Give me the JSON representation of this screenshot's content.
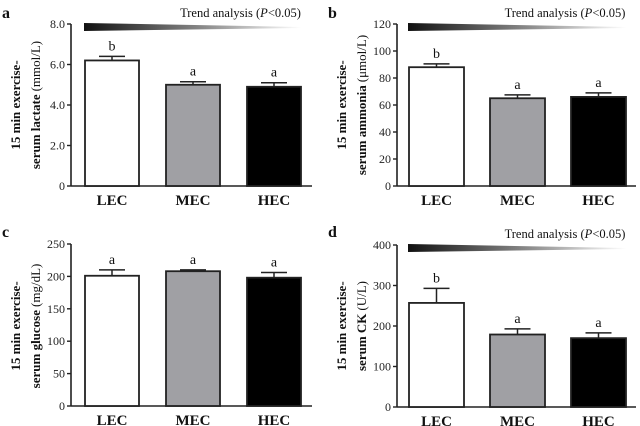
{
  "chart_data": [
    {
      "type": "bar",
      "panel_label": "a",
      "categories": [
        "LEC",
        "MEC",
        "HEC"
      ],
      "values": [
        6.2,
        5.0,
        4.9
      ],
      "error": [
        0.2,
        0.15,
        0.2
      ],
      "significance": [
        "b",
        "a",
        "a"
      ],
      "colors": [
        "#ffffff",
        "#a0a0a4",
        "#000000"
      ],
      "ylabel_line1": "15 min exercise-",
      "ylabel_line2_bold": "serum lactate",
      "ylabel_line2_unit": "(mmol/L)",
      "ylim": [
        0,
        8
      ],
      "yticks": [
        0,
        2,
        4,
        6,
        8
      ],
      "ytick_labels": [
        "0",
        "2.0",
        "4.0",
        "6.0",
        "8.0"
      ],
      "trend": "Trend analysis (P<0.05)",
      "trend_prefix": "Trend analysis (",
      "trend_p": "P",
      "trend_suffix": "<0.05)"
    },
    {
      "type": "bar",
      "panel_label": "b",
      "categories": [
        "LEC",
        "MEC",
        "HEC"
      ],
      "values": [
        88,
        65,
        66
      ],
      "error": [
        2.5,
        2.5,
        3
      ],
      "significance": [
        "b",
        "a",
        "a"
      ],
      "colors": [
        "#ffffff",
        "#a0a0a4",
        "#000000"
      ],
      "ylabel_line1": "15 min exercise-",
      "ylabel_line2_bold": "serum ammonia",
      "ylabel_line2_unit": "(μmol/L)",
      "ylim": [
        0,
        120
      ],
      "yticks": [
        0,
        20,
        40,
        60,
        80,
        100,
        120
      ],
      "ytick_labels": [
        "0",
        "20",
        "40",
        "60",
        "80",
        "100",
        "120"
      ],
      "trend": "Trend analysis (P<0.05)",
      "trend_prefix": "Trend analysis (",
      "trend_p": "P",
      "trend_suffix": "<0.05)"
    },
    {
      "type": "bar",
      "panel_label": "c",
      "categories": [
        "LEC",
        "MEC",
        "HEC"
      ],
      "values": [
        201,
        208,
        198
      ],
      "error": [
        9,
        2,
        8
      ],
      "significance": [
        "a",
        "a",
        "a"
      ],
      "colors": [
        "#ffffff",
        "#a0a0a4",
        "#000000"
      ],
      "ylabel_line1": "15 min exercise-",
      "ylabel_line2_bold": "serum glucose",
      "ylabel_line2_unit": "(mg/dL)",
      "ylim": [
        0,
        250
      ],
      "yticks": [
        0,
        50,
        100,
        150,
        200,
        250
      ],
      "ytick_labels": [
        "0",
        "50",
        "100",
        "150",
        "200",
        "250"
      ],
      "trend": null
    },
    {
      "type": "bar",
      "panel_label": "d",
      "categories": [
        "LEC",
        "MEC",
        "HEC"
      ],
      "values": [
        257,
        179,
        170
      ],
      "error": [
        36,
        14,
        13
      ],
      "significance": [
        "b",
        "a",
        "a"
      ],
      "colors": [
        "#ffffff",
        "#a0a0a4",
        "#000000"
      ],
      "ylabel_line1": "15 min exercise-",
      "ylabel_line2_bold": "serum CK",
      "ylabel_line2_unit": "(U/L)",
      "ylim": [
        0,
        400
      ],
      "yticks": [
        0,
        100,
        200,
        300,
        400
      ],
      "ytick_labels": [
        "0",
        "100",
        "200",
        "300",
        "400"
      ],
      "trend": "Trend analysis (P<0.05)",
      "trend_prefix": "Trend analysis (",
      "trend_p": "P",
      "trend_suffix": "<0.05)"
    }
  ]
}
